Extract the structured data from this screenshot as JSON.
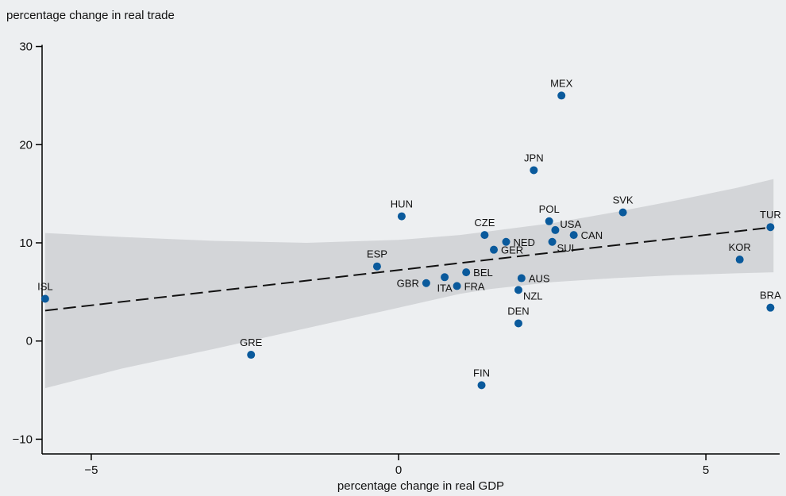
{
  "chart_data": {
    "type": "scatter",
    "title": "",
    "xlabel": "percentage change in real GDP",
    "ylabel": "percentage change in real trade",
    "xlim": [
      -5.8,
      6.2
    ],
    "ylim": [
      -11.5,
      31.5
    ],
    "xticks": [
      -5,
      0,
      5
    ],
    "xtick_labels": [
      "−5",
      "0",
      "5"
    ],
    "yticks": [
      -10,
      0,
      10,
      20,
      30
    ],
    "ytick_labels": [
      "−10",
      "0",
      "10",
      "20",
      "30"
    ],
    "grid": false,
    "legend": "none",
    "marker_color": "#0a5a9c",
    "band_color": "#d3d5d8",
    "fit_line": {
      "x": [
        -5.75,
        6.1
      ],
      "y": [
        3.1,
        11.6
      ],
      "style": "dashed"
    },
    "confidence_band": {
      "x": [
        -5.75,
        -4.5,
        -3.0,
        -1.5,
        0.0,
        1.0,
        1.5,
        2.5,
        3.5,
        4.5,
        5.5,
        6.1
      ],
      "upper": [
        11.0,
        10.6,
        10.2,
        10.0,
        10.3,
        10.8,
        11.2,
        12.0,
        13.1,
        14.3,
        15.6,
        16.5
      ],
      "lower": [
        -4.8,
        -2.8,
        -0.8,
        1.3,
        3.4,
        4.8,
        5.3,
        6.0,
        6.4,
        6.7,
        6.9,
        7.0
      ]
    },
    "points": [
      {
        "label": "MEX",
        "x": 2.65,
        "y": 25.0,
        "pos": "above"
      },
      {
        "label": "JPN",
        "x": 2.2,
        "y": 17.4,
        "pos": "above"
      },
      {
        "label": "HUN",
        "x": 0.05,
        "y": 12.7,
        "pos": "above"
      },
      {
        "label": "SVK",
        "x": 3.65,
        "y": 13.1,
        "pos": "above"
      },
      {
        "label": "POL",
        "x": 2.45,
        "y": 12.2,
        "pos": "above"
      },
      {
        "label": "USA",
        "x": 2.55,
        "y": 11.3,
        "pos": "upright"
      },
      {
        "label": "CAN",
        "x": 2.85,
        "y": 10.8,
        "pos": "right"
      },
      {
        "label": "CZE",
        "x": 1.4,
        "y": 10.8,
        "pos": "above"
      },
      {
        "label": "NED",
        "x": 1.75,
        "y": 10.1,
        "pos": "right"
      },
      {
        "label": "SUI",
        "x": 2.5,
        "y": 10.1,
        "pos": "downright"
      },
      {
        "label": "GER",
        "x": 1.55,
        "y": 9.3,
        "pos": "right"
      },
      {
        "label": "TUR",
        "x": 6.05,
        "y": 11.6,
        "pos": "above"
      },
      {
        "label": "KOR",
        "x": 5.55,
        "y": 8.3,
        "pos": "above"
      },
      {
        "label": "ESP",
        "x": -0.35,
        "y": 7.6,
        "pos": "above"
      },
      {
        "label": "BEL",
        "x": 1.1,
        "y": 7.0,
        "pos": "right"
      },
      {
        "label": "AUS",
        "x": 2.0,
        "y": 6.4,
        "pos": "right"
      },
      {
        "label": "GBR",
        "x": 0.45,
        "y": 5.9,
        "pos": "left"
      },
      {
        "label": "ITA",
        "x": 0.75,
        "y": 6.5,
        "pos": "below"
      },
      {
        "label": "FRA",
        "x": 0.95,
        "y": 5.6,
        "pos": "right"
      },
      {
        "label": "NZL",
        "x": 1.95,
        "y": 5.2,
        "pos": "downright"
      },
      {
        "label": "ISL",
        "x": -5.75,
        "y": 4.3,
        "pos": "above"
      },
      {
        "label": "BRA",
        "x": 6.05,
        "y": 3.4,
        "pos": "above"
      },
      {
        "label": "DEN",
        "x": 1.95,
        "y": 1.8,
        "pos": "above"
      },
      {
        "label": "GRE",
        "x": -2.4,
        "y": -1.4,
        "pos": "above"
      },
      {
        "label": "FIN",
        "x": 1.35,
        "y": -4.5,
        "pos": "above"
      }
    ]
  }
}
